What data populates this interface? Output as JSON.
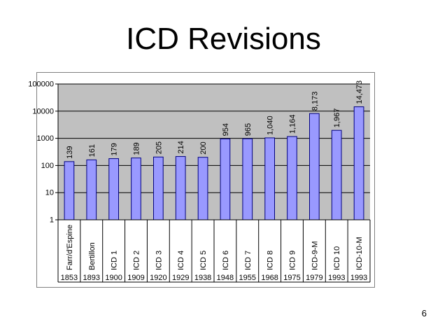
{
  "slide": {
    "title": "ICD Revisions",
    "page_number": "6"
  },
  "chart_data": {
    "type": "bar",
    "title": "ICD Revisions",
    "y_scale": "log",
    "ylim": [
      1,
      100000
    ],
    "y_ticks": [
      "1",
      "10",
      "100",
      "1000",
      "10000",
      "100000"
    ],
    "y_tick_values": [
      1,
      10,
      100,
      1000,
      10000,
      100000
    ],
    "categories": [
      "Farr/d'Espine",
      "Bertillon",
      "ICD 1",
      "ICD 2",
      "ICD 3",
      "ICD 4",
      "ICD 5",
      "ICD 6",
      "ICD 7",
      "ICD 8",
      "ICD 9",
      "ICD-9-M",
      "ICD 10",
      "ICD-10-M"
    ],
    "years": [
      "1853",
      "1893",
      "1900",
      "1909",
      "1920",
      "1929",
      "1938",
      "1948",
      "1955",
      "1968",
      "1975",
      "1979",
      "1993",
      "1993"
    ],
    "values": [
      139,
      161,
      179,
      189,
      205,
      214,
      200,
      954,
      965,
      1040,
      1164,
      8173,
      1967,
      14473
    ],
    "value_labels": [
      "139",
      "161",
      "179",
      "189",
      "205",
      "214",
      "200",
      "954",
      "965",
      "1,040",
      "1,164",
      "8,173",
      "1,967",
      "14,473"
    ],
    "grid": true,
    "legend": "none",
    "colors": {
      "bar_fill": "#9999ff",
      "bar_stroke": "#000080",
      "plot_bg": "#c0c0c0",
      "gridline": "#000000"
    }
  }
}
